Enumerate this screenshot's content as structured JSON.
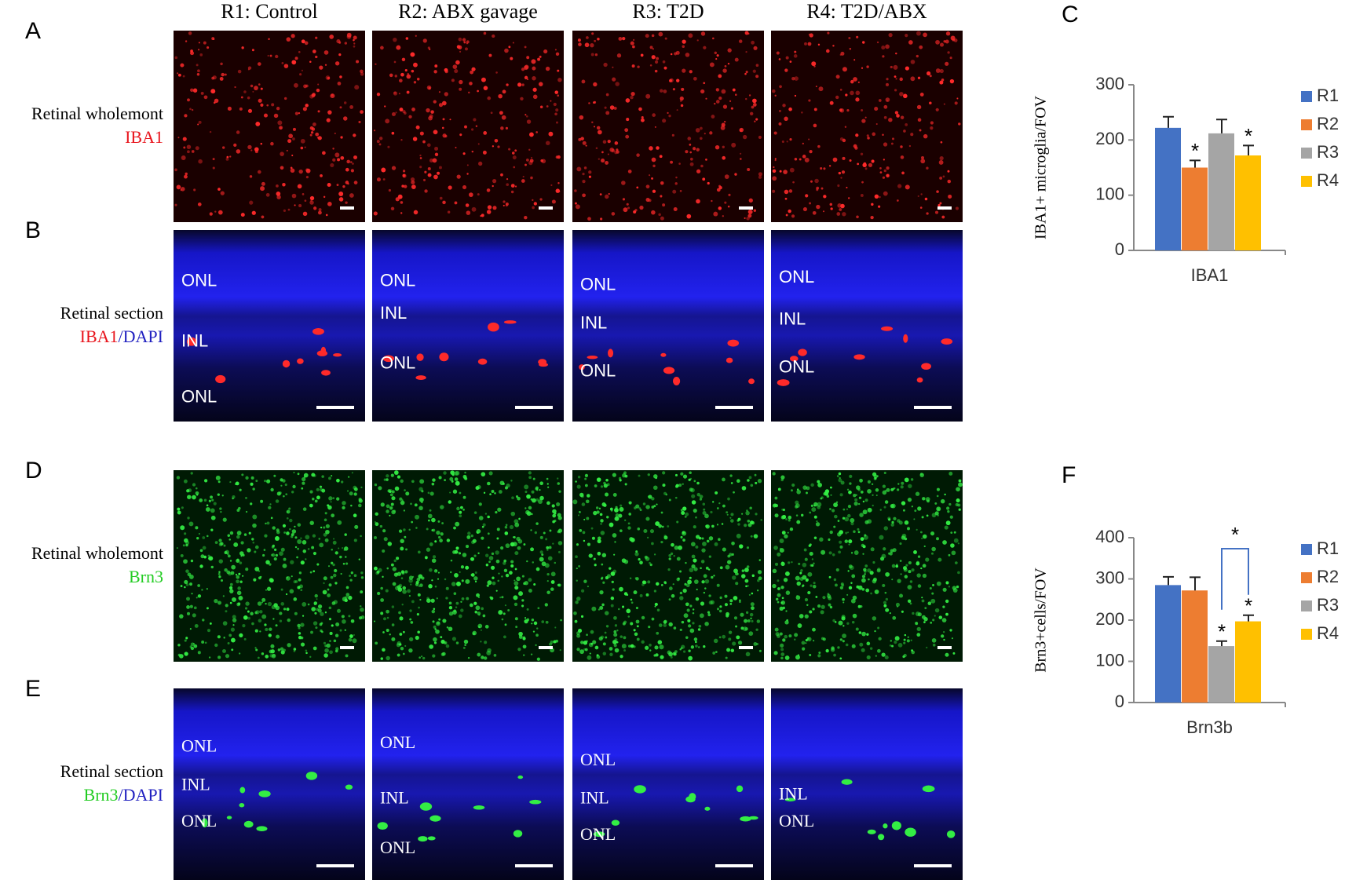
{
  "column_labels": [
    "R1: Control",
    "R2: ABX gavage",
    "R3: T2D",
    "R4: T2D/ABX"
  ],
  "panels": [
    {
      "letter": "A",
      "label": "Retinal wholemont",
      "stain": "IBA1"
    },
    {
      "letter": "B",
      "label": "Retinal section",
      "stain": "IBA1",
      "separator": "/",
      "counterstain": "DAPI",
      "layers": [
        [
          "ONL",
          "INL",
          "ONL"
        ],
        [
          "ONL",
          "INL",
          "ONL"
        ],
        [
          "ONL",
          "INL",
          "ONL"
        ],
        [
          "ONL",
          "INL",
          "ONL"
        ]
      ]
    },
    {
      "letter": "D",
      "label": "Retinal wholemont",
      "stain": "Brn3"
    },
    {
      "letter": "E",
      "label": "Retinal section",
      "stain": "Brn3",
      "separator": "/",
      "counterstain": "DAPI",
      "layers": [
        [
          "ONL",
          "INL",
          "ONL"
        ],
        [
          "ONL",
          "INL",
          "ONL"
        ],
        [
          "ONL",
          "INL",
          "ONL"
        ],
        [
          "INL",
          "ONL"
        ]
      ]
    }
  ],
  "chart_data": [
    {
      "type": "bar",
      "letter": "C",
      "y_label": "IBA1+ microglia/FOV",
      "categories": [
        "IBA1"
      ],
      "series": [
        {
          "name": "R1",
          "color": "#4472c4",
          "values": [
            222
          ],
          "errors": [
            20
          ]
        },
        {
          "name": "R2",
          "color": "#ed7d31",
          "values": [
            150
          ],
          "errors": [
            13
          ]
        },
        {
          "name": "R3",
          "color": "#a5a5a5",
          "values": [
            212
          ],
          "errors": [
            25
          ]
        },
        {
          "name": "R4",
          "color": "#ffc000",
          "values": [
            172
          ],
          "errors": [
            18
          ]
        }
      ],
      "ylim": [
        0,
        300
      ],
      "yticks": [
        0,
        100,
        200,
        300
      ],
      "annotations": [
        "*",
        "*"
      ]
    },
    {
      "type": "bar",
      "letter": "F",
      "y_label": "Brn3+cells/FOV",
      "categories": [
        "Brn3b"
      ],
      "series": [
        {
          "name": "R1",
          "color": "#4472c4",
          "values": [
            285
          ],
          "errors": [
            20
          ]
        },
        {
          "name": "R2",
          "color": "#ed7d31",
          "values": [
            272
          ],
          "errors": [
            32
          ]
        },
        {
          "name": "R3",
          "color": "#a5a5a5",
          "values": [
            137
          ],
          "errors": [
            12
          ]
        },
        {
          "name": "R4",
          "color": "#ffc000",
          "values": [
            197
          ],
          "errors": [
            15
          ]
        }
      ],
      "ylim": [
        0,
        400
      ],
      "yticks": [
        0,
        100,
        200,
        300,
        400
      ],
      "annotations": [
        "*",
        "*",
        "*"
      ]
    }
  ]
}
